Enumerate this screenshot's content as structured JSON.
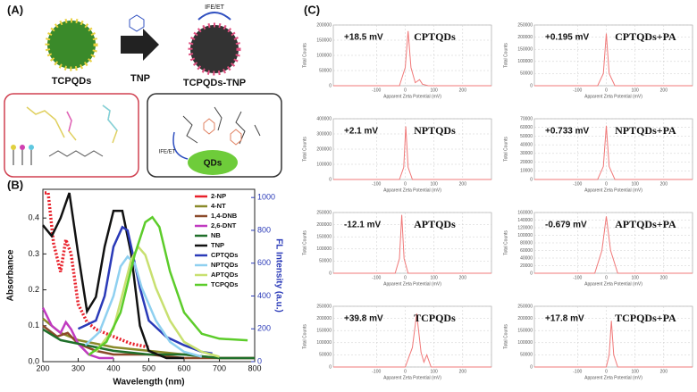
{
  "panel_a": {
    "label": "(A)",
    "left_particle": "TCPQDs",
    "reagent": "TNP",
    "right_particle": "TCPQDs-TNP",
    "mechanism_top": "IFE/ET",
    "mechanism_inset": "IFE/ET",
    "core": "QDs"
  },
  "panel_c_label": "(C)",
  "chart_data": [
    {
      "type": "line",
      "panel_label": "(B)",
      "xlabel": "Wavelength (nm)",
      "ylabel": "Absorbance",
      "y2label": "FL Intensity (a.u.)",
      "xlim": [
        200,
        800
      ],
      "xticks": [
        200,
        300,
        400,
        500,
        600,
        700,
        800
      ],
      "ylim": [
        0,
        0.48
      ],
      "yticks": [
        {
          "value": 0,
          "label": "0.0"
        },
        {
          "value": 0.1,
          "label": "0.1"
        },
        {
          "value": 0.2,
          "label": "0.2"
        },
        {
          "value": 0.3,
          "label": "0.3"
        },
        {
          "value": 0.4,
          "label": "0.4"
        }
      ],
      "y2lim": [
        0,
        1050
      ],
      "y2ticks": [
        0,
        200,
        400,
        600,
        800,
        1000
      ],
      "series": [
        {
          "name": "2-NP",
          "color": "#e8202a",
          "x": [
            205,
            215,
            230,
            250,
            265,
            280,
            300,
            325,
            350,
            400,
            450,
            500
          ],
          "values": [
            0.47,
            0.47,
            0.33,
            0.25,
            0.34,
            0.3,
            0.16,
            0.11,
            0.09,
            0.07,
            0.05,
            0.04
          ]
        },
        {
          "name": "4-NT",
          "color": "#8a8a2a",
          "x": [
            200,
            250,
            300,
            350,
            400,
            500,
            600,
            700,
            800
          ],
          "values": [
            0.12,
            0.08,
            0.06,
            0.05,
            0.04,
            0.03,
            0.02,
            0.01,
            0.01
          ]
        },
        {
          "name": "1,4-DNB",
          "color": "#8b4a2a",
          "x": [
            200,
            240,
            270,
            300,
            350,
            400,
            500,
            600,
            700,
            800
          ],
          "values": [
            0.1,
            0.07,
            0.08,
            0.05,
            0.03,
            0.02,
            0.02,
            0.01,
            0.01,
            0.01
          ]
        },
        {
          "name": "2,6-DNT",
          "color": "#c03ac0",
          "x": [
            200,
            225,
            250,
            265,
            280,
            300,
            330,
            360,
            400
          ],
          "values": [
            0.15,
            0.1,
            0.08,
            0.11,
            0.09,
            0.05,
            0.02,
            0.01,
            0.01
          ]
        },
        {
          "name": "NB",
          "color": "#1f6f2a",
          "x": [
            200,
            250,
            300,
            350,
            400,
            500,
            600,
            700,
            800
          ],
          "values": [
            0.09,
            0.06,
            0.05,
            0.04,
            0.03,
            0.02,
            0.02,
            0.01,
            0.01
          ]
        },
        {
          "name": "TNP",
          "color": "#111111",
          "x": [
            200,
            225,
            250,
            275,
            300,
            325,
            350,
            375,
            400,
            425,
            450,
            475,
            500,
            550,
            600
          ],
          "values": [
            0.38,
            0.35,
            0.4,
            0.47,
            0.3,
            0.14,
            0.18,
            0.32,
            0.42,
            0.42,
            0.3,
            0.1,
            0.03,
            0.01,
            0.01
          ]
        },
        {
          "name": "CPTQDs",
          "color": "#2a3ab8",
          "axis": "y2",
          "x": [
            300,
            350,
            375,
            400,
            425,
            440,
            450,
            475,
            500,
            550,
            600,
            650,
            680
          ],
          "values": [
            200,
            250,
            400,
            700,
            820,
            800,
            700,
            450,
            250,
            150,
            100,
            60,
            50
          ]
        },
        {
          "name": "NPTQDs",
          "color": "#8fd0f0",
          "axis": "y2",
          "x": [
            320,
            360,
            400,
            420,
            440,
            460,
            480,
            520,
            560,
            600,
            650
          ],
          "values": [
            100,
            180,
            400,
            580,
            640,
            600,
            450,
            250,
            120,
            60,
            30
          ]
        },
        {
          "name": "APTQDs",
          "color": "#c8e070",
          "axis": "y2",
          "x": [
            350,
            400,
            430,
            450,
            470,
            490,
            520,
            560,
            600,
            650,
            700
          ],
          "values": [
            60,
            200,
            450,
            620,
            700,
            650,
            450,
            250,
            120,
            60,
            30
          ]
        },
        {
          "name": "TCPQDs",
          "color": "#5ccc2a",
          "axis": "y2",
          "x": [
            330,
            380,
            420,
            460,
            490,
            510,
            530,
            560,
            600,
            650,
            700,
            780
          ],
          "values": [
            40,
            120,
            300,
            650,
            850,
            880,
            820,
            550,
            300,
            170,
            140,
            130
          ]
        }
      ]
    },
    {
      "type": "zeta",
      "title": "CPTQDs",
      "potential": "+18.5 mV",
      "ylabel": "Total Counts",
      "xlabel": "Apparent Zeta Potential (mV)",
      "xlim": [
        -250,
        300
      ],
      "xticks": [
        -100,
        0,
        100,
        200
      ],
      "ylim": [
        0,
        200000
      ],
      "yticks": [
        0,
        50000,
        100000,
        150000,
        200000
      ],
      "color": "#f07878",
      "x": [
        -250,
        -20,
        0,
        10,
        20,
        35,
        50,
        60,
        80,
        300
      ],
      "values": [
        0,
        0,
        60000,
        180000,
        60000,
        10000,
        20000,
        5000,
        0,
        0
      ]
    },
    {
      "type": "zeta",
      "title": "CPTQDs+PA",
      "potential": "+0.195 mV",
      "ylabel": "Total Counts",
      "xlabel": "Apparent Zeta Potential (mV)",
      "xlim": [
        -250,
        300
      ],
      "xticks": [
        -100,
        0,
        100,
        200
      ],
      "ylim": [
        0,
        250000
      ],
      "yticks": [
        0,
        50000,
        100000,
        150000,
        200000,
        250000
      ],
      "color": "#f07878",
      "x": [
        -250,
        -30,
        -10,
        0,
        10,
        30,
        300
      ],
      "values": [
        0,
        0,
        50000,
        215000,
        50000,
        0,
        0
      ]
    },
    {
      "type": "zeta",
      "title": "NPTQDs",
      "potential": "+2.1 mV",
      "ylabel": "Total Counts",
      "xlabel": "Apparent Zeta Potential (mV)",
      "xlim": [
        -250,
        300
      ],
      "xticks": [
        -100,
        0,
        100,
        200
      ],
      "ylim": [
        0,
        400000
      ],
      "yticks": [
        0,
        100000,
        200000,
        300000,
        400000
      ],
      "color": "#f07878",
      "x": [
        -250,
        -20,
        -5,
        2,
        10,
        25,
        300
      ],
      "values": [
        0,
        0,
        80000,
        350000,
        80000,
        0,
        0
      ]
    },
    {
      "type": "zeta",
      "title": "NPTQDs+PA",
      "potential": "+0.733 mV",
      "ylabel": "Total Counts",
      "xlabel": "Apparent Zeta Potential (mV)",
      "xlim": [
        -250,
        300
      ],
      "xticks": [
        -100,
        0,
        100,
        200
      ],
      "ylim": [
        0,
        70000
      ],
      "yticks": [
        0,
        10000,
        20000,
        30000,
        40000,
        50000,
        60000,
        70000
      ],
      "color": "#f07878",
      "x": [
        -250,
        -30,
        -10,
        0,
        10,
        30,
        300
      ],
      "values": [
        0,
        0,
        15000,
        62000,
        15000,
        0,
        0
      ]
    },
    {
      "type": "zeta",
      "title": "APTQDs",
      "potential": "-12.1 mV",
      "ylabel": "Total Counts",
      "xlabel": "Apparent Zeta Potential (mV)",
      "xlim": [
        -250,
        300
      ],
      "xticks": [
        -100,
        0,
        100,
        200
      ],
      "ylim": [
        0,
        250000
      ],
      "yticks": [
        0,
        50000,
        100000,
        150000,
        200000,
        250000
      ],
      "color": "#f07878",
      "x": [
        -250,
        -35,
        -20,
        -12,
        -4,
        10,
        300
      ],
      "values": [
        0,
        0,
        60000,
        240000,
        60000,
        0,
        0
      ]
    },
    {
      "type": "zeta",
      "title": "APTQDs+PA",
      "potential": "-0.679 mV",
      "ylabel": "Total Counts",
      "xlabel": "Apparent Zeta Potential (mV)",
      "xlim": [
        -250,
        300
      ],
      "xticks": [
        -100,
        0,
        100,
        200
      ],
      "ylim": [
        0,
        160000
      ],
      "yticks": [
        0,
        20000,
        40000,
        60000,
        80000,
        100000,
        120000,
        140000,
        160000
      ],
      "color": "#f07878",
      "x": [
        -250,
        -40,
        -15,
        0,
        15,
        40,
        300
      ],
      "values": [
        0,
        0,
        60000,
        150000,
        60000,
        0,
        0
      ]
    },
    {
      "type": "zeta",
      "title": "TCPQDs",
      "potential": "+39.8 mV",
      "ylabel": "Total Counts",
      "xlabel": "Apparent Zeta Potential (mV)",
      "xlim": [
        -250,
        300
      ],
      "xticks": [
        -100,
        0,
        100,
        200
      ],
      "ylim": [
        0,
        250000
      ],
      "yticks": [
        0,
        50000,
        100000,
        150000,
        200000,
        250000
      ],
      "color": "#f07878",
      "x": [
        -250,
        0,
        25,
        40,
        55,
        65,
        75,
        90,
        300
      ],
      "values": [
        0,
        0,
        80000,
        220000,
        60000,
        20000,
        50000,
        0,
        0
      ]
    },
    {
      "type": "zeta",
      "title": "TCPQDs+PA",
      "potential": "+17.8 mV",
      "ylabel": "Total Counts",
      "xlabel": "Apparent Zeta Potential (mV)",
      "xlim": [
        -250,
        300
      ],
      "xticks": [
        -100,
        0,
        100,
        200
      ],
      "ylim": [
        0,
        250000
      ],
      "yticks": [
        0,
        50000,
        100000,
        150000,
        200000,
        250000
      ],
      "color": "#f07878",
      "x": [
        -250,
        0,
        10,
        18,
        26,
        40,
        300
      ],
      "values": [
        0,
        0,
        50000,
        190000,
        50000,
        0,
        0
      ]
    }
  ]
}
